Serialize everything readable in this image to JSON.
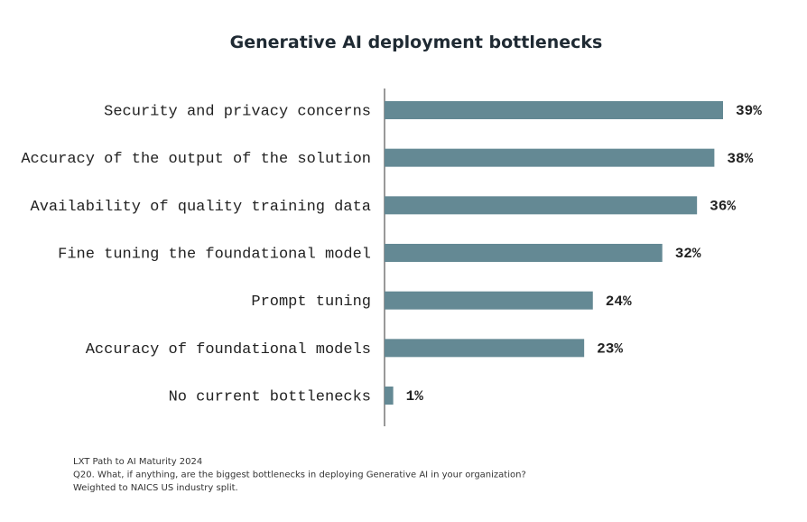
{
  "chart_data": {
    "type": "bar",
    "orientation": "horizontal",
    "title": "Generative AI deployment bottlenecks",
    "categories": [
      "Security and privacy concerns",
      "Accuracy of the output of the solution",
      "Availability of quality training data",
      "Fine tuning the foundational model",
      "Prompt tuning",
      "Accuracy of foundational models",
      "No current bottlenecks"
    ],
    "values": [
      39,
      38,
      36,
      32,
      24,
      23,
      1
    ],
    "value_labels": [
      "39%",
      "38%",
      "36%",
      "32%",
      "24%",
      "23%",
      "1%"
    ],
    "color": "#648994",
    "footnotes": [
      "LXT Path to AI Maturity 2024",
      "Q20. What, if anything, are the biggest bottlenecks in deploying Generative AI in your organization?",
      "Weighted to NAICS US industry split."
    ]
  }
}
